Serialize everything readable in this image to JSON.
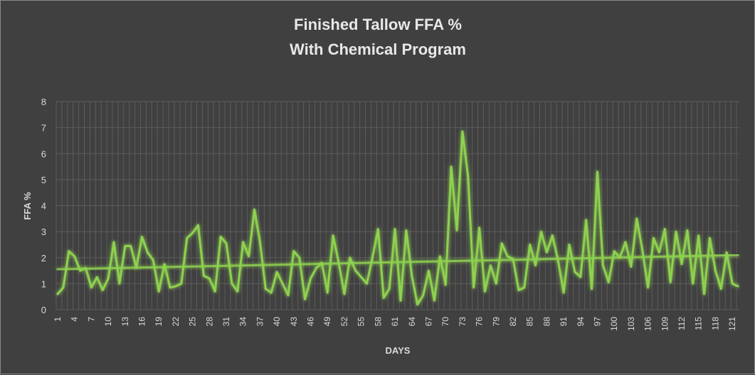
{
  "chart_data": {
    "type": "line",
    "title_line1": "Finished Tallow FFA %",
    "title_line2": "With Chemical Program",
    "xlabel": "DAYS",
    "ylabel": "FFA %",
    "ylim": [
      0,
      8
    ],
    "yticks": [
      0,
      1,
      2,
      3,
      4,
      5,
      6,
      7,
      8
    ],
    "x_tick_labels": [
      "1",
      "4",
      "7",
      "10",
      "13",
      "16",
      "19",
      "22",
      "25",
      "28",
      "31",
      "34",
      "37",
      "40",
      "43",
      "46",
      "49",
      "52",
      "55",
      "58",
      "61",
      "64",
      "67",
      "70",
      "73",
      "76",
      "79",
      "82",
      "85",
      "88",
      "91",
      "94",
      "97",
      "100",
      "103",
      "106",
      "109",
      "112",
      "115",
      "118",
      "121"
    ],
    "grid": "both",
    "legend": "none",
    "series": [
      {
        "color": "#8ed14f",
        "values": [
          0.6,
          0.85,
          2.25,
          2.05,
          1.5,
          1.6,
          0.85,
          1.25,
          0.75,
          1.2,
          2.6,
          1.0,
          2.45,
          2.45,
          1.6,
          2.8,
          2.2,
          1.9,
          0.7,
          1.75,
          0.85,
          0.9,
          1.0,
          2.75,
          2.95,
          3.25,
          1.3,
          1.2,
          0.7,
          2.8,
          2.55,
          1.0,
          0.7,
          2.6,
          2.05,
          3.85,
          2.6,
          0.8,
          0.65,
          1.45,
          1.0,
          0.55,
          2.25,
          2.0,
          0.4,
          1.2,
          1.6,
          1.8,
          0.65,
          2.85,
          1.8,
          0.6,
          2.0,
          1.5,
          1.25,
          1.0,
          2.0,
          3.1,
          0.45,
          0.8,
          3.1,
          0.35,
          3.05,
          1.3,
          0.2,
          0.55,
          1.5,
          0.35,
          2.05,
          0.95,
          5.5,
          3.05,
          6.85,
          5.1,
          0.85,
          3.15,
          0.7,
          1.7,
          1.0,
          2.55,
          2.05,
          1.95,
          0.75,
          0.85,
          2.5,
          1.7,
          3.0,
          2.2,
          2.85,
          1.9,
          0.65,
          2.5,
          1.45,
          1.25,
          3.45,
          0.8,
          5.3,
          1.7,
          1.05,
          2.25,
          2.0,
          2.6,
          1.65,
          3.5,
          2.3,
          0.85,
          2.75,
          2.2,
          3.1,
          1.05,
          3.0,
          1.75,
          3.05,
          1.0,
          2.85,
          0.6,
          2.75,
          1.5,
          0.8,
          2.2,
          1.0,
          0.9
        ]
      },
      {
        "color": "#8ed14f",
        "type": "trendline",
        "values": [
          1.55,
          2.1
        ]
      }
    ]
  }
}
